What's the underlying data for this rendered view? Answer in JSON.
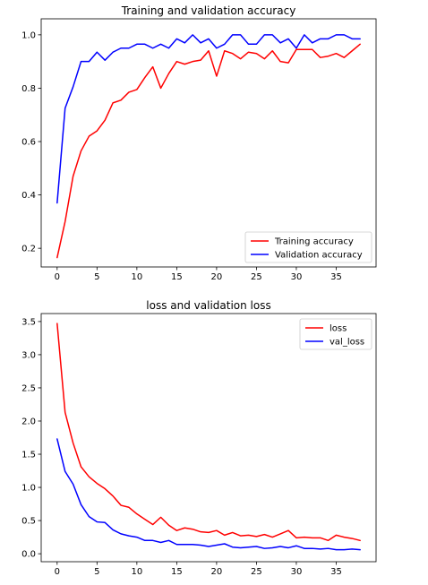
{
  "chart_data": [
    {
      "type": "line",
      "title": "Training and validation accuracy",
      "xlabel": "",
      "ylabel": "",
      "xlim": [
        -2,
        40
      ],
      "ylim": [
        0.13,
        1.06
      ],
      "xticks": [
        0,
        5,
        10,
        15,
        20,
        25,
        30,
        35
      ],
      "yticks": [
        0.2,
        0.4,
        0.6,
        0.8,
        1.0
      ],
      "ytick_format": 1,
      "grid": false,
      "legend_position": "lower-right",
      "x": [
        0,
        1,
        2,
        3,
        4,
        5,
        6,
        7,
        8,
        9,
        10,
        11,
        12,
        13,
        14,
        15,
        16,
        17,
        18,
        19,
        20,
        21,
        22,
        23,
        24,
        25,
        26,
        27,
        28,
        29,
        30,
        31,
        32,
        33,
        34,
        35,
        36,
        37,
        38
      ],
      "series": [
        {
          "name": "Training accuracy",
          "color": "#ff0000",
          "values": [
            0.165,
            0.3,
            0.47,
            0.565,
            0.62,
            0.64,
            0.68,
            0.745,
            0.755,
            0.785,
            0.795,
            0.84,
            0.88,
            0.8,
            0.855,
            0.9,
            0.89,
            0.9,
            0.905,
            0.94,
            0.845,
            0.94,
            0.93,
            0.91,
            0.935,
            0.93,
            0.91,
            0.94,
            0.9,
            0.895,
            0.945,
            0.945,
            0.945,
            0.915,
            0.92,
            0.93,
            0.915,
            0.94,
            0.965
          ]
        },
        {
          "name": "Validation accuracy",
          "color": "#0000ff",
          "values": [
            0.37,
            0.725,
            0.805,
            0.9,
            0.9,
            0.935,
            0.905,
            0.935,
            0.95,
            0.95,
            0.965,
            0.965,
            0.95,
            0.965,
            0.95,
            0.985,
            0.97,
            1.0,
            0.97,
            0.985,
            0.95,
            0.965,
            1.0,
            1.0,
            0.965,
            0.965,
            1.0,
            1.0,
            0.97,
            0.985,
            0.95,
            1.0,
            0.97,
            0.985,
            0.985,
            1.0,
            1.0,
            0.985,
            0.985
          ]
        }
      ]
    },
    {
      "type": "line",
      "title": "loss and validation loss",
      "xlabel": "",
      "ylabel": "",
      "xlim": [
        -2,
        40
      ],
      "ylim": [
        -0.12,
        3.62
      ],
      "xticks": [
        0,
        5,
        10,
        15,
        20,
        25,
        30,
        35
      ],
      "yticks": [
        0.0,
        0.5,
        1.0,
        1.5,
        2.0,
        2.5,
        3.0,
        3.5
      ],
      "ytick_format": 1,
      "grid": false,
      "legend_position": "top-right",
      "x": [
        0,
        1,
        2,
        3,
        4,
        5,
        6,
        7,
        8,
        9,
        10,
        11,
        12,
        13,
        14,
        15,
        16,
        17,
        18,
        19,
        20,
        21,
        22,
        23,
        24,
        25,
        26,
        27,
        28,
        29,
        30,
        31,
        32,
        33,
        34,
        35,
        36,
        37,
        38
      ],
      "series": [
        {
          "name": "loss",
          "color": "#ff0000",
          "values": [
            3.47,
            2.13,
            1.67,
            1.31,
            1.16,
            1.06,
            0.98,
            0.87,
            0.73,
            0.7,
            0.6,
            0.52,
            0.44,
            0.55,
            0.43,
            0.35,
            0.39,
            0.37,
            0.33,
            0.32,
            0.35,
            0.28,
            0.32,
            0.27,
            0.28,
            0.26,
            0.29,
            0.25,
            0.3,
            0.35,
            0.24,
            0.25,
            0.24,
            0.24,
            0.2,
            0.28,
            0.25,
            0.23,
            0.2
          ]
        },
        {
          "name": "val_loss",
          "color": "#0000ff",
          "values": [
            1.73,
            1.24,
            1.05,
            0.74,
            0.56,
            0.48,
            0.47,
            0.36,
            0.3,
            0.27,
            0.25,
            0.2,
            0.2,
            0.17,
            0.2,
            0.14,
            0.14,
            0.14,
            0.13,
            0.11,
            0.13,
            0.15,
            0.1,
            0.09,
            0.1,
            0.11,
            0.08,
            0.09,
            0.11,
            0.09,
            0.12,
            0.08,
            0.08,
            0.07,
            0.08,
            0.06,
            0.06,
            0.07,
            0.06
          ]
        }
      ]
    }
  ]
}
